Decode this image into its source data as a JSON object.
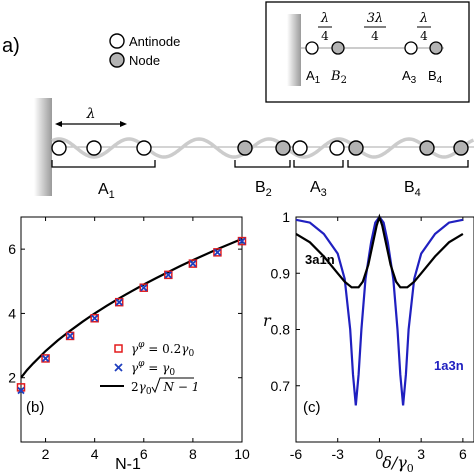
{
  "panel_a": {
    "label": "a)",
    "legend": {
      "antinode": "Antinode",
      "node": "Node"
    },
    "wavelength_symbol": "λ",
    "segments": [
      "A",
      "B",
      "A",
      "B"
    ],
    "segment_subscripts": [
      "1",
      "2",
      "3",
      "4"
    ],
    "inset": {
      "lambda": "λ",
      "four": "4",
      "three_lambda": "3λ",
      "labels": [
        "A",
        "B",
        "A",
        "B"
      ],
      "subscripts": [
        "1",
        "2",
        "3",
        "4"
      ]
    },
    "colors": {
      "node_fill": "#b3b3b3",
      "wave": "#cccccc",
      "mirror": "#9a9a9a"
    }
  },
  "chart_data": [
    {
      "type": "scatter",
      "panel_label": "(b)",
      "xlabel": "N-1",
      "ylabel": "",
      "xlim": [
        1,
        10
      ],
      "ylim": [
        0,
        7
      ],
      "xticks": [
        2,
        4,
        6,
        8,
        10
      ],
      "yticks": [
        2,
        4,
        6
      ],
      "legend_position": "bottom-right",
      "series": [
        {
          "name": "γφ = 0.2γ0",
          "marker": "open-square",
          "color": "#e31a1c",
          "x": [
            1,
            2,
            3,
            4,
            5,
            6,
            7,
            8,
            9,
            10
          ],
          "y": [
            1.7,
            2.6,
            3.3,
            3.85,
            4.35,
            4.8,
            5.2,
            5.55,
            5.9,
            6.25
          ]
        },
        {
          "name": "γφ = γ0",
          "marker": "x",
          "color": "#1f3fbf",
          "x": [
            1,
            2,
            3,
            4,
            5,
            6,
            7,
            8,
            9,
            10
          ],
          "y": [
            1.6,
            2.6,
            3.3,
            3.85,
            4.35,
            4.8,
            5.2,
            5.55,
            5.9,
            6.25
          ]
        },
        {
          "name": "2γ0√(N−1)",
          "marker": "line",
          "color": "#000000",
          "x": [
            1,
            1.25,
            1.5,
            2,
            2.5,
            3,
            3.5,
            4,
            4.5,
            5,
            5.5,
            6,
            6.5,
            7,
            7.5,
            8,
            8.5,
            9,
            9.5,
            10
          ],
          "y": [
            2.0,
            2.24,
            2.45,
            2.83,
            3.16,
            3.46,
            3.74,
            4.0,
            4.24,
            4.47,
            4.69,
            4.9,
            5.1,
            5.29,
            5.48,
            5.66,
            5.83,
            6.0,
            6.16,
            6.32
          ]
        }
      ],
      "legend": {
        "gp02": {
          "gamma": "γ",
          "sup": "φ",
          "eq": " = 0.2",
          "g0": "γ",
          "sub": "0"
        },
        "gp1": {
          "gamma": "γ",
          "sup": "φ",
          "eq": " = ",
          "g0": "γ",
          "sub": "0"
        },
        "sqrt": {
          "pre": "2",
          "g0": "γ",
          "sub": "0",
          "arg": "N − 1"
        }
      }
    },
    {
      "type": "line",
      "panel_label": "(c)",
      "xlabel": "δ/γ",
      "xlabel_sub": "0",
      "ylabel": "r",
      "xlim": [
        -6,
        6
      ],
      "ylim": [
        0.6,
        1.0
      ],
      "xticks": [
        -6,
        -3,
        0,
        3,
        6
      ],
      "yticks": [
        0.7,
        0.8,
        0.9,
        1
      ],
      "series": [
        {
          "name": "3a1n",
          "color": "#000000",
          "x": [
            -6,
            -5,
            -4,
            -3,
            -2.5,
            -2,
            -1.5,
            -1.2,
            -0.8,
            -0.5,
            -0.2,
            0,
            0.2,
            0.5,
            0.8,
            1.2,
            1.5,
            2,
            2.5,
            3,
            4,
            5,
            6
          ],
          "y": [
            0.97,
            0.955,
            0.93,
            0.9,
            0.885,
            0.875,
            0.875,
            0.885,
            0.915,
            0.95,
            0.985,
            1.0,
            0.985,
            0.95,
            0.915,
            0.885,
            0.875,
            0.875,
            0.885,
            0.9,
            0.93,
            0.955,
            0.97
          ]
        },
        {
          "name": "1a3n",
          "color": "#2020c0",
          "x": [
            -6,
            -5,
            -4,
            -3,
            -2.5,
            -2.1,
            -1.9,
            -1.7,
            -1.5,
            -1.3,
            -1.0,
            -0.6,
            -0.3,
            0,
            0.3,
            0.6,
            1.0,
            1.3,
            1.5,
            1.7,
            1.9,
            2.1,
            2.5,
            3,
            4,
            5,
            6
          ],
          "y": [
            0.995,
            0.99,
            0.97,
            0.935,
            0.89,
            0.8,
            0.72,
            0.665,
            0.72,
            0.8,
            0.89,
            0.955,
            0.99,
            1.0,
            0.99,
            0.955,
            0.89,
            0.8,
            0.72,
            0.665,
            0.72,
            0.8,
            0.89,
            0.935,
            0.97,
            0.99,
            0.995
          ]
        }
      ]
    }
  ]
}
